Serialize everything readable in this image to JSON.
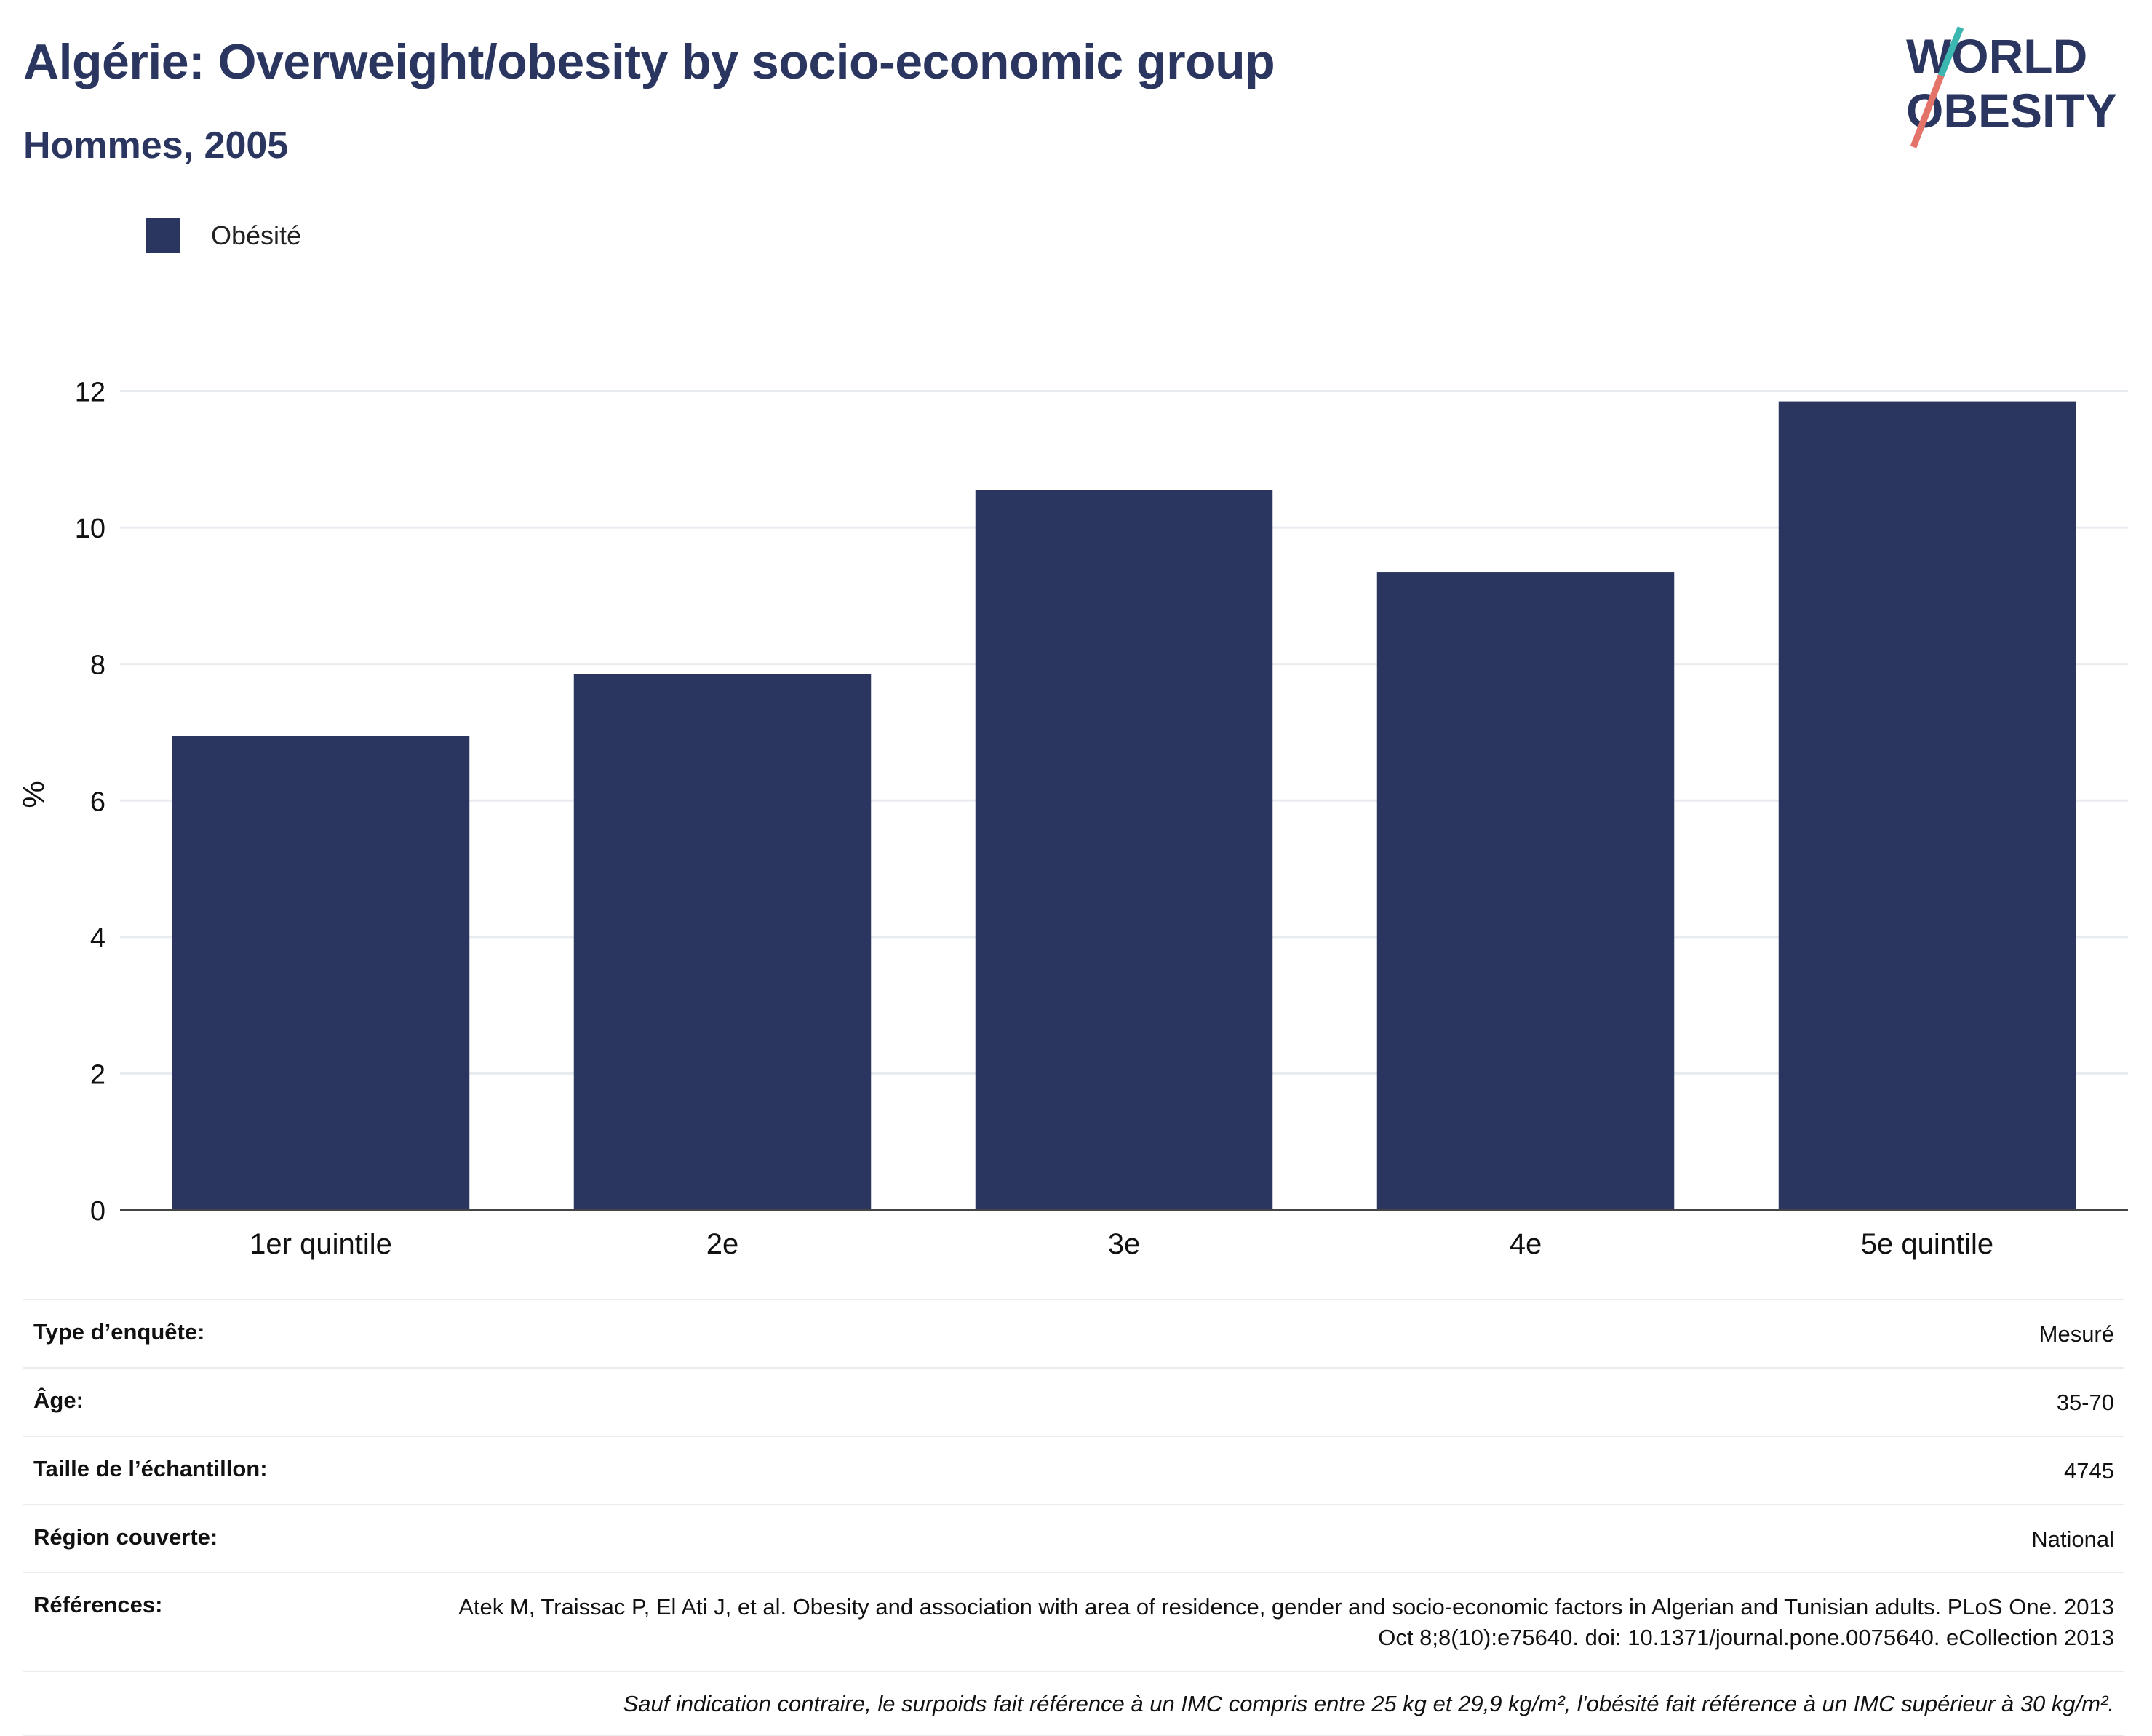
{
  "header": {
    "title": "Algérie: Overweight/obesity by socio-economic group",
    "subtitle": "Hommes, 2005",
    "logo_text": "WORLD OBESITY"
  },
  "legend": {
    "label": "Obésité",
    "color": "#2a3560"
  },
  "chart_data": {
    "type": "bar",
    "categories": [
      "1er quintile",
      "2e",
      "3e",
      "4e",
      "5e quintile"
    ],
    "series": [
      {
        "name": "Obésité",
        "values": [
          6.95,
          7.85,
          10.55,
          9.35,
          11.85
        ],
        "color": "#2a3560"
      }
    ],
    "ylabel": "%",
    "ylim": [
      0,
      12.4
    ],
    "yticks": [
      0,
      2,
      4,
      6,
      8,
      10,
      12
    ],
    "grid": true
  },
  "meta": {
    "rows": [
      {
        "label": "Type d’enquête:",
        "value": "Mesuré"
      },
      {
        "label": "Âge:",
        "value": "35-70"
      },
      {
        "label": "Taille de l’échantillon:",
        "value": "4745"
      },
      {
        "label": "Région couverte:",
        "value": "National"
      },
      {
        "label": "Références:",
        "value": "Atek M, Traissac P, El Ati J, et al. Obesity and association with area of residence, gender and socio-economic factors in Algerian and Tunisian adults. PLoS One. 2013 Oct 8;8(10):e75640. doi: 10.1371/journal.pone.0075640. eCollection 2013"
      }
    ],
    "note": "Sauf indication contraire, le surpoids fait référence à un IMC compris entre 25 kg et 29,9 kg/m², l'obésité fait référence à un IMC supérieur à 30 kg/m²."
  }
}
